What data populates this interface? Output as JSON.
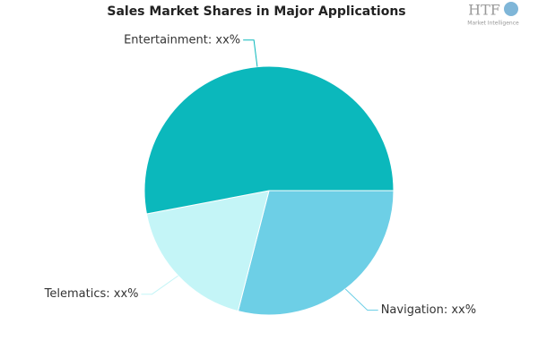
{
  "chart_data": {
    "type": "pie",
    "title": "Sales Market Shares in Major Applications",
    "values": [
      29,
      18,
      53
    ],
    "value_labels": [
      "Navigation: xx%",
      "Telematics: xx%",
      "Entertainment: xx%"
    ],
    "colors": [
      "#6dcfe6",
      "#c4f5f7",
      "#0bb8bc"
    ]
  },
  "logo": {
    "text": "HTF",
    "subtext": "Market Intelligence"
  }
}
